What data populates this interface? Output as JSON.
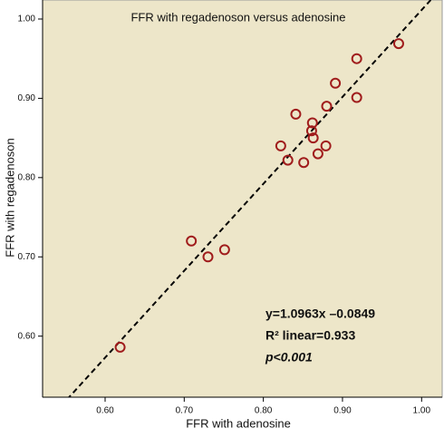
{
  "chart_data": {
    "type": "scatter",
    "title": "FFR with regadenoson versus adenosine",
    "x_label": "FFR with adenosine",
    "y_label": "FFR with regadenoson",
    "x": [
      0.619,
      0.709,
      0.73,
      0.751,
      0.822,
      0.831,
      0.841,
      0.851,
      0.862,
      0.861,
      0.863,
      0.869,
      0.879,
      0.88,
      0.891,
      0.918,
      0.918,
      0.971
    ],
    "values": [
      0.586,
      0.72,
      0.7,
      0.709,
      0.84,
      0.822,
      0.88,
      0.819,
      0.869,
      0.859,
      0.85,
      0.83,
      0.84,
      0.89,
      0.919,
      0.95,
      0.901,
      0.969
    ],
    "color": "#a01c1c",
    "xlim": [
      0.521,
      1.026
    ],
    "ylim": [
      0.523,
      1.024
    ],
    "xticks": [
      {
        "value": 0.6,
        "label": "0.60"
      },
      {
        "value": 0.7,
        "label": "0.70"
      },
      {
        "value": 0.8,
        "label": "0.80"
      },
      {
        "value": 0.9,
        "label": "0.90"
      },
      {
        "value": 1.0,
        "label": "1.00"
      }
    ],
    "yticks": [
      {
        "value": 0.6,
        "label": "0.60"
      },
      {
        "value": 0.7,
        "label": "0.70"
      },
      {
        "value": 0.8,
        "label": "0.80"
      },
      {
        "value": 0.9,
        "label": "0.90"
      },
      {
        "value": 1.0,
        "label": "1.00"
      }
    ],
    "fit": {
      "slope": 1.0963,
      "intercept": -0.0849
    },
    "annotations": [
      "y=1.0963x –0.0849",
      "R² linear=0.933",
      "p<0.001"
    ]
  }
}
